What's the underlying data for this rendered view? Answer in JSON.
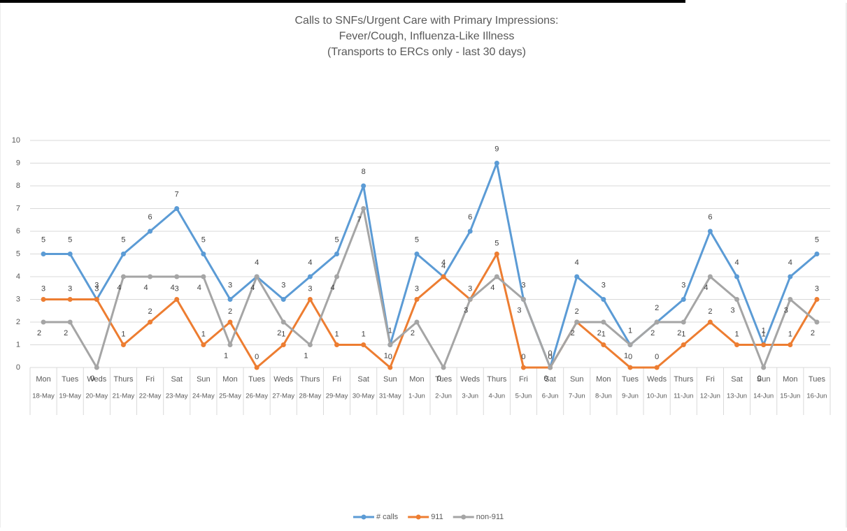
{
  "chart_data": {
    "type": "line",
    "title": [
      "Calls to SNFs/Urgent Care with Primary Impressions:",
      "Fever/Cough, Influenza-Like Illness",
      "(Transports to ERCs only - last 30 days)"
    ],
    "categories": [
      "Mon",
      "Tues",
      "Weds",
      "Thurs",
      "Fri",
      "Sat",
      "Sun",
      "Mon",
      "Tues",
      "Weds",
      "Thurs",
      "Fri",
      "Sat",
      "Sun",
      "Mon",
      "Tues",
      "Weds",
      "Thurs",
      "Fri",
      "Sat",
      "Sun",
      "Mon",
      "Tues",
      "Weds",
      "Thurs",
      "Fri",
      "Sat",
      "Sun",
      "Mon",
      "Tues"
    ],
    "dates": [
      "18-May",
      "19-May",
      "20-May",
      "21-May",
      "22-May",
      "23-May",
      "24-May",
      "25-May",
      "26-May",
      "27-May",
      "28-May",
      "29-May",
      "30-May",
      "31-May",
      "1-Jun",
      "2-Jun",
      "3-Jun",
      "4-Jun",
      "5-Jun",
      "6-Jun",
      "7-Jun",
      "8-Jun",
      "9-Jun",
      "10-Jun",
      "11-Jun",
      "12-Jun",
      "13-Jun",
      "14-Jun",
      "15-Jun",
      "16-Jun"
    ],
    "series": [
      {
        "name": "# calls",
        "color": "#5b9bd5",
        "values": [
          5,
          5,
          3,
          5,
          6,
          7,
          5,
          3,
          4,
          3,
          4,
          5,
          8,
          1,
          5,
          4,
          6,
          9,
          3,
          0,
          4,
          3,
          1,
          2,
          3,
          6,
          4,
          1,
          4,
          5
        ]
      },
      {
        "name": "911",
        "color": "#ed7d31",
        "values": [
          3,
          3,
          3,
          1,
          2,
          3,
          1,
          2,
          0,
          1,
          3,
          1,
          1,
          0,
          3,
          4,
          3,
          5,
          0,
          0,
          2,
          1,
          0,
          0,
          1,
          2,
          1,
          1,
          1,
          3
        ]
      },
      {
        "name": "non-911",
        "color": "#a5a5a5",
        "values": [
          2,
          2,
          0,
          4,
          4,
          4,
          4,
          1,
          4,
          2,
          1,
          4,
          7,
          1,
          2,
          0,
          3,
          4,
          3,
          0,
          2,
          2,
          1,
          2,
          2,
          4,
          3,
          0,
          3,
          2
        ]
      }
    ],
    "ylim": [
      0,
      10
    ],
    "yticks": [
      0,
      1,
      2,
      3,
      4,
      5,
      6,
      7,
      8,
      9,
      10
    ],
    "grid": true,
    "legend": "bottom"
  }
}
